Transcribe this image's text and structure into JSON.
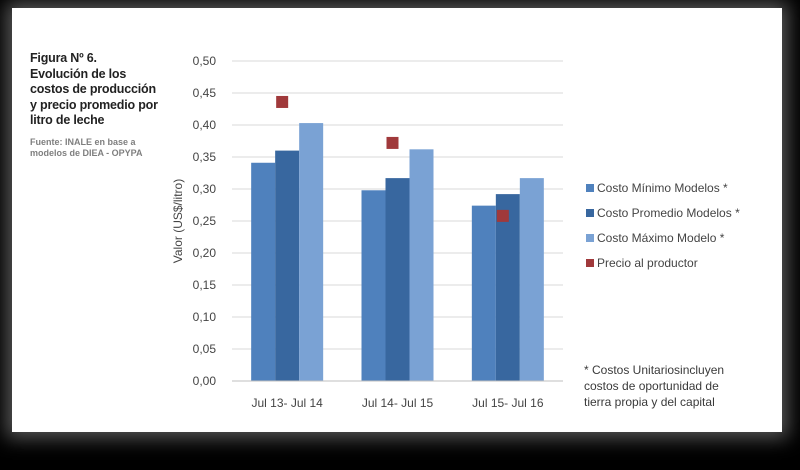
{
  "caption": {
    "title": "Figura Nº 6.\nEvolución de los\ncostos de producción\ny precio promedio por\nlitro de leche",
    "source": "Fuente: INALE en base a\nmodelos de DIEA - OPYPA"
  },
  "note": "* Costos Unitariosincluyen\ncostos de oportunidad de\ntierra propia y del capital",
  "chart_data": {
    "type": "bar",
    "categories": [
      "Jul 13- Jul 14",
      "Jul 14- Jul 15",
      "Jul 15- Jul 16"
    ],
    "ylabel": "Valor (US$/litro)",
    "ylim": [
      0,
      0.5
    ],
    "yticks": [
      "0,00",
      "0,05",
      "0,10",
      "0,15",
      "0,20",
      "0,25",
      "0,30",
      "0,35",
      "0,40",
      "0,45",
      "0,50"
    ],
    "grid": true,
    "legend_position": "right",
    "series": [
      {
        "name": "Costo Mínimo Modelos *",
        "kind": "bar",
        "color": "#4f81bd",
        "values": [
          0.341,
          0.298,
          0.274
        ]
      },
      {
        "name": "Costo Promedio Modelos *",
        "kind": "bar",
        "color": "#38679f",
        "values": [
          0.36,
          0.317,
          0.292
        ]
      },
      {
        "name": "Costo Máximo Modelo *",
        "kind": "bar",
        "color": "#7aa2d4",
        "values": [
          0.403,
          0.362,
          0.317
        ]
      },
      {
        "name": "Precio al productor",
        "kind": "marker",
        "color": "#a0393b",
        "values": [
          0.436,
          0.372,
          0.258
        ]
      }
    ]
  }
}
